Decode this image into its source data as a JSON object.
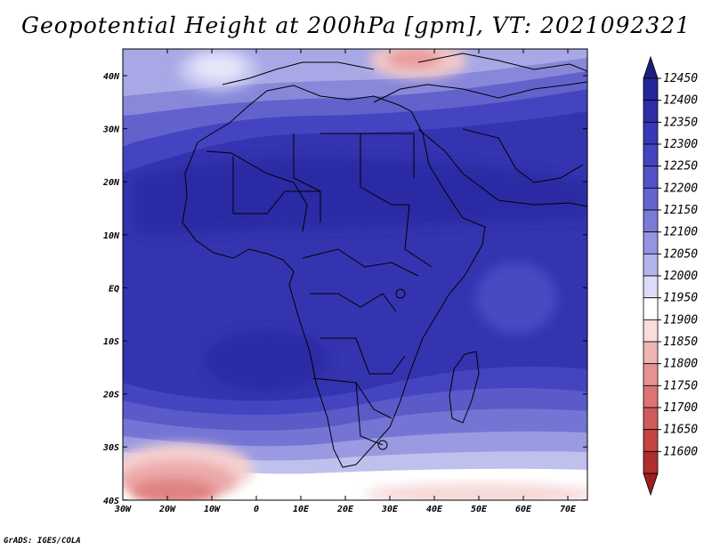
{
  "title": "Geopotential Height at 200hPa [gpm], VT: 2021092321",
  "footer": "GrADS: IGES/COLA",
  "map": {
    "lon_range": [
      -30,
      75
    ],
    "lat_range": [
      -40,
      45
    ],
    "lon_ticks": [
      "30W",
      "20W",
      "10W",
      "0",
      "10E",
      "20E",
      "30E",
      "40E",
      "50E",
      "60E",
      "70E"
    ],
    "lat_ticks": [
      "40N",
      "30N",
      "20N",
      "10N",
      "EQ",
      "10S",
      "20S",
      "30S",
      "40S"
    ],
    "field_units": "gpm",
    "high_color": "#24248e",
    "low_color": "#b01818"
  },
  "colorbar": {
    "labels": [
      "12450",
      "12400",
      "12350",
      "12300",
      "12250",
      "12200",
      "12150",
      "12100",
      "12050",
      "12000",
      "11950",
      "11900",
      "11850",
      "11800",
      "11750",
      "11700",
      "11650",
      "11600"
    ],
    "colors": [
      "#1e1e82",
      "#25259a",
      "#2e2eaa",
      "#3838b8",
      "#4444c2",
      "#5252c8",
      "#6464d0",
      "#7a7ad8",
      "#9494e0",
      "#b4b4ec",
      "#dcdcf6",
      "#ffffff",
      "#fadcdc",
      "#f0b4b4",
      "#e69292",
      "#dc7474",
      "#d05a5a",
      "#c24444",
      "#b02e2e",
      "#9c1e1e"
    ]
  }
}
